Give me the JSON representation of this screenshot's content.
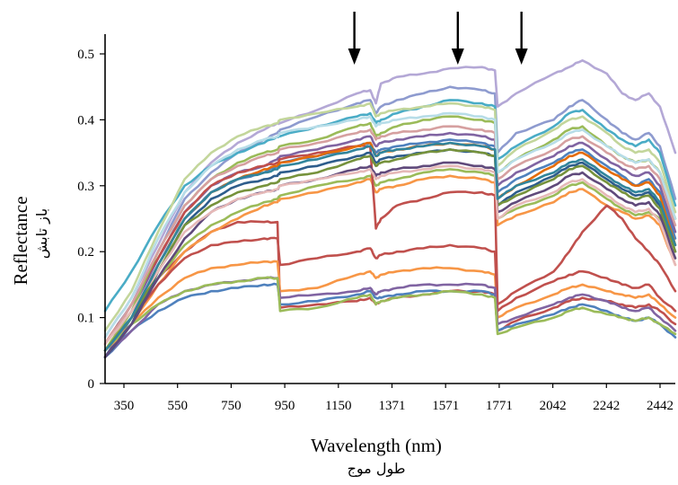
{
  "chart_data": {
    "type": "line",
    "title": "",
    "ylabel": "Reflectance",
    "ylabel_secondary": "باز تابش",
    "xlabel": "Wavelength (nm)",
    "xlabel_secondary": "طول موج",
    "xlim": [
      350,
      2500
    ],
    "ylim": [
      0,
      0.5
    ],
    "x_tick_labels": [
      "350",
      "550",
      "750",
      "950",
      "1150",
      "1371",
      "1571",
      "1771",
      "2042",
      "2242",
      "2442"
    ],
    "y_ticks": [
      0,
      0.1,
      0.2,
      0.3,
      0.4,
      0.5
    ],
    "y_tick_labels": [
      "0",
      "0.1",
      "0.2",
      "0.3",
      "0.4",
      "0.5"
    ],
    "grid": false,
    "legend": "none",
    "arrows_at_wavelength": [
      1290,
      1680,
      1920
    ],
    "x": [
      350,
      450,
      550,
      650,
      750,
      850,
      950,
      1000,
      1010,
      1150,
      1300,
      1350,
      1371,
      1390,
      1450,
      1550,
      1650,
      1771,
      1820,
      1830,
      1900,
      2042,
      2100,
      2150,
      2242,
      2300,
      2350,
      2400,
      2442,
      2500
    ],
    "series": [
      {
        "color": "#8e9bcf",
        "values": [
          0.06,
          0.12,
          0.2,
          0.28,
          0.32,
          0.35,
          0.37,
          0.38,
          0.385,
          0.405,
          0.425,
          0.43,
          0.41,
          0.42,
          0.43,
          0.44,
          0.45,
          0.445,
          0.44,
          0.35,
          0.38,
          0.4,
          0.42,
          0.43,
          0.4,
          0.38,
          0.37,
          0.38,
          0.36,
          0.28
        ]
      },
      {
        "color": "#b4a8d6",
        "values": [
          0.07,
          0.13,
          0.21,
          0.29,
          0.335,
          0.365,
          0.385,
          0.395,
          0.395,
          0.415,
          0.44,
          0.445,
          0.425,
          0.455,
          0.465,
          0.47,
          0.478,
          0.48,
          0.475,
          0.42,
          0.44,
          0.47,
          0.48,
          0.49,
          0.47,
          0.44,
          0.43,
          0.44,
          0.42,
          0.35
        ]
      },
      {
        "color": "#4aacc6",
        "values": [
          0.11,
          0.17,
          0.24,
          0.3,
          0.33,
          0.35,
          0.365,
          0.375,
          0.375,
          0.39,
          0.405,
          0.41,
          0.395,
          0.4,
          0.41,
          0.42,
          0.43,
          0.425,
          0.42,
          0.34,
          0.36,
          0.39,
          0.41,
          0.415,
          0.385,
          0.37,
          0.36,
          0.37,
          0.35,
          0.27
        ]
      },
      {
        "color": "#c0504d",
        "values": [
          0.05,
          0.1,
          0.16,
          0.2,
          0.23,
          0.245,
          0.245,
          0.245,
          0.115,
          0.12,
          0.125,
          0.13,
          0.12,
          0.125,
          0.13,
          0.135,
          0.14,
          0.14,
          0.135,
          0.08,
          0.095,
          0.115,
          0.125,
          0.13,
          0.125,
          0.12,
          0.115,
          0.12,
          0.11,
          0.09
        ]
      },
      {
        "color": "#9bbb59",
        "values": [
          0.05,
          0.1,
          0.16,
          0.21,
          0.24,
          0.26,
          0.275,
          0.28,
          0.285,
          0.3,
          0.31,
          0.315,
          0.3,
          0.305,
          0.31,
          0.32,
          0.325,
          0.32,
          0.315,
          0.25,
          0.265,
          0.285,
          0.3,
          0.305,
          0.28,
          0.265,
          0.255,
          0.26,
          0.25,
          0.19
        ]
      },
      {
        "color": "#f79646",
        "values": [
          0.04,
          0.09,
          0.15,
          0.2,
          0.23,
          0.25,
          0.27,
          0.275,
          0.28,
          0.29,
          0.305,
          0.31,
          0.29,
          0.295,
          0.3,
          0.31,
          0.315,
          0.31,
          0.305,
          0.24,
          0.255,
          0.275,
          0.29,
          0.295,
          0.27,
          0.26,
          0.25,
          0.255,
          0.24,
          0.18
        ]
      },
      {
        "color": "#8064a2",
        "values": [
          0.05,
          0.11,
          0.19,
          0.26,
          0.3,
          0.32,
          0.33,
          0.34,
          0.345,
          0.355,
          0.37,
          0.375,
          0.36,
          0.365,
          0.37,
          0.375,
          0.38,
          0.375,
          0.37,
          0.3,
          0.32,
          0.345,
          0.36,
          0.365,
          0.34,
          0.325,
          0.315,
          0.32,
          0.3,
          0.23
        ]
      },
      {
        "color": "#4f81bd",
        "values": [
          0.04,
          0.1,
          0.18,
          0.25,
          0.29,
          0.31,
          0.32,
          0.33,
          0.335,
          0.345,
          0.36,
          0.365,
          0.35,
          0.355,
          0.36,
          0.365,
          0.37,
          0.365,
          0.36,
          0.29,
          0.31,
          0.335,
          0.35,
          0.355,
          0.33,
          0.315,
          0.3,
          0.31,
          0.29,
          0.22
        ]
      },
      {
        "color": "#c0504d",
        "values": [
          0.06,
          0.12,
          0.19,
          0.26,
          0.3,
          0.32,
          0.33,
          0.335,
          0.34,
          0.35,
          0.36,
          0.36,
          0.235,
          0.25,
          0.27,
          0.28,
          0.29,
          0.29,
          0.285,
          0.12,
          0.14,
          0.17,
          0.2,
          0.23,
          0.27,
          0.25,
          0.22,
          0.2,
          0.18,
          0.14
        ]
      },
      {
        "color": "#9bbb59",
        "values": [
          0.05,
          0.11,
          0.2,
          0.27,
          0.31,
          0.335,
          0.35,
          0.355,
          0.36,
          0.37,
          0.39,
          0.395,
          0.375,
          0.38,
          0.39,
          0.4,
          0.405,
          0.4,
          0.395,
          0.32,
          0.34,
          0.37,
          0.385,
          0.39,
          0.36,
          0.345,
          0.335,
          0.34,
          0.32,
          0.25
        ]
      },
      {
        "color": "#f79646",
        "values": [
          0.05,
          0.09,
          0.13,
          0.16,
          0.175,
          0.18,
          0.185,
          0.185,
          0.14,
          0.145,
          0.165,
          0.17,
          0.16,
          0.165,
          0.17,
          0.175,
          0.175,
          0.17,
          0.165,
          0.1,
          0.115,
          0.135,
          0.145,
          0.15,
          0.14,
          0.135,
          0.13,
          0.135,
          0.12,
          0.1
        ]
      },
      {
        "color": "#4f81bd",
        "values": [
          0.04,
          0.08,
          0.11,
          0.13,
          0.14,
          0.145,
          0.15,
          0.15,
          0.12,
          0.125,
          0.135,
          0.14,
          0.13,
          0.13,
          0.135,
          0.14,
          0.14,
          0.14,
          0.135,
          0.08,
          0.09,
          0.105,
          0.115,
          0.12,
          0.11,
          0.1,
          0.095,
          0.1,
          0.09,
          0.07
        ]
      },
      {
        "color": "#c0504d",
        "values": [
          0.05,
          0.1,
          0.15,
          0.19,
          0.21,
          0.215,
          0.22,
          0.22,
          0.18,
          0.19,
          0.2,
          0.205,
          0.19,
          0.195,
          0.2,
          0.205,
          0.21,
          0.205,
          0.2,
          0.11,
          0.13,
          0.155,
          0.165,
          0.17,
          0.16,
          0.15,
          0.145,
          0.15,
          0.13,
          0.11
        ]
      },
      {
        "color": "#8064a2",
        "values": [
          0.04,
          0.08,
          0.12,
          0.14,
          0.15,
          0.155,
          0.16,
          0.16,
          0.13,
          0.135,
          0.14,
          0.145,
          0.135,
          0.14,
          0.145,
          0.15,
          0.15,
          0.15,
          0.145,
          0.09,
          0.1,
          0.12,
          0.13,
          0.135,
          0.125,
          0.115,
          0.11,
          0.115,
          0.1,
          0.08
        ]
      },
      {
        "color": "#9bbb59",
        "values": [
          0.05,
          0.09,
          0.12,
          0.14,
          0.15,
          0.155,
          0.16,
          0.16,
          0.11,
          0.115,
          0.13,
          0.135,
          0.12,
          0.125,
          0.13,
          0.135,
          0.14,
          0.135,
          0.13,
          0.075,
          0.085,
          0.1,
          0.11,
          0.115,
          0.105,
          0.1,
          0.095,
          0.1,
          0.09,
          0.075
        ]
      },
      {
        "color": "#d6a0a0",
        "values": [
          0.06,
          0.12,
          0.2,
          0.27,
          0.31,
          0.33,
          0.345,
          0.35,
          0.355,
          0.365,
          0.38,
          0.385,
          0.37,
          0.375,
          0.38,
          0.385,
          0.39,
          0.385,
          0.38,
          0.31,
          0.33,
          0.355,
          0.37,
          0.375,
          0.35,
          0.335,
          0.325,
          0.33,
          0.31,
          0.24
        ]
      },
      {
        "color": "#c3d69b",
        "values": [
          0.08,
          0.14,
          0.23,
          0.31,
          0.35,
          0.375,
          0.39,
          0.395,
          0.4,
          0.41,
          0.42,
          0.425,
          0.405,
          0.41,
          0.415,
          0.42,
          0.425,
          0.42,
          0.415,
          0.33,
          0.355,
          0.385,
          0.4,
          0.405,
          0.38,
          0.36,
          0.35,
          0.355,
          0.335,
          0.26
        ]
      },
      {
        "color": "#2e5d8c",
        "values": [
          0.04,
          0.09,
          0.17,
          0.24,
          0.28,
          0.3,
          0.31,
          0.315,
          0.32,
          0.33,
          0.345,
          0.35,
          0.335,
          0.34,
          0.345,
          0.35,
          0.355,
          0.35,
          0.345,
          0.27,
          0.29,
          0.315,
          0.33,
          0.335,
          0.31,
          0.295,
          0.285,
          0.29,
          0.27,
          0.2
        ]
      },
      {
        "color": "#e46c0a",
        "values": [
          0.05,
          0.1,
          0.18,
          0.25,
          0.29,
          0.31,
          0.325,
          0.33,
          0.335,
          0.345,
          0.36,
          0.365,
          0.345,
          0.35,
          0.355,
          0.36,
          0.365,
          0.36,
          0.355,
          0.28,
          0.3,
          0.33,
          0.345,
          0.35,
          0.325,
          0.31,
          0.3,
          0.305,
          0.285,
          0.21
        ]
      },
      {
        "color": "#76923c",
        "values": [
          0.05,
          0.1,
          0.17,
          0.24,
          0.27,
          0.29,
          0.3,
          0.305,
          0.31,
          0.32,
          0.34,
          0.345,
          0.33,
          0.335,
          0.34,
          0.35,
          0.355,
          0.35,
          0.345,
          0.27,
          0.285,
          0.31,
          0.325,
          0.33,
          0.305,
          0.29,
          0.28,
          0.285,
          0.265,
          0.2
        ]
      },
      {
        "color": "#b7dde8",
        "values": [
          0.07,
          0.13,
          0.22,
          0.29,
          0.33,
          0.355,
          0.37,
          0.375,
          0.38,
          0.39,
          0.4,
          0.405,
          0.39,
          0.395,
          0.4,
          0.405,
          0.41,
          0.405,
          0.4,
          0.32,
          0.34,
          0.365,
          0.38,
          0.385,
          0.36,
          0.345,
          0.335,
          0.34,
          0.32,
          0.25
        ]
      },
      {
        "color": "#604a7b",
        "values": [
          0.04,
          0.09,
          0.16,
          0.22,
          0.26,
          0.28,
          0.29,
          0.295,
          0.3,
          0.31,
          0.325,
          0.33,
          0.315,
          0.32,
          0.325,
          0.33,
          0.335,
          0.33,
          0.325,
          0.26,
          0.275,
          0.3,
          0.315,
          0.32,
          0.295,
          0.28,
          0.27,
          0.275,
          0.255,
          0.19
        ]
      },
      {
        "color": "#e6b9b8",
        "values": [
          0.06,
          0.11,
          0.17,
          0.23,
          0.26,
          0.28,
          0.29,
          0.295,
          0.3,
          0.31,
          0.32,
          0.325,
          0.31,
          0.315,
          0.32,
          0.325,
          0.33,
          0.325,
          0.32,
          0.25,
          0.27,
          0.29,
          0.305,
          0.31,
          0.285,
          0.27,
          0.26,
          0.265,
          0.245,
          0.18
        ]
      },
      {
        "color": "#31859c",
        "values": [
          0.05,
          0.1,
          0.18,
          0.25,
          0.29,
          0.31,
          0.32,
          0.325,
          0.33,
          0.34,
          0.355,
          0.36,
          0.345,
          0.35,
          0.355,
          0.36,
          0.365,
          0.36,
          0.355,
          0.28,
          0.3,
          0.32,
          0.335,
          0.34,
          0.315,
          0.3,
          0.29,
          0.295,
          0.275,
          0.21
        ]
      }
    ]
  }
}
